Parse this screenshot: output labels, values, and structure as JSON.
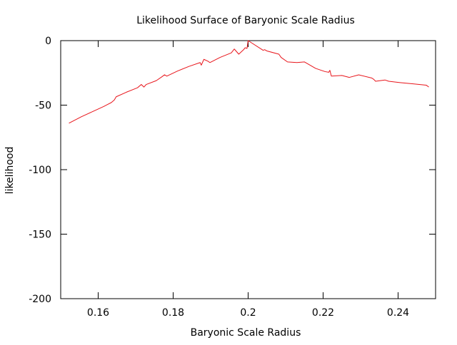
{
  "chart_data": {
    "type": "line",
    "title": "Likelihood Surface of Baryonic Scale Radius",
    "xlabel": "Baryonic Scale Radius",
    "ylabel": "likelihood",
    "xlim": [
      0.15,
      0.25
    ],
    "ylim": [
      -200,
      0
    ],
    "grid": false,
    "x_ticks": [
      0.16,
      0.18,
      0.2,
      0.22,
      0.24
    ],
    "x_tick_labels": [
      "0.16",
      "0.18",
      "0.2",
      "0.22",
      "0.24"
    ],
    "y_ticks": [
      0,
      -50,
      -100,
      -150,
      -200
    ],
    "y_tick_labels": [
      "0",
      "-50",
      "-100",
      "-150",
      "-200"
    ],
    "series": [
      {
        "color": "#e8151b",
        "x": [
          0.1522,
          0.1555,
          0.1585,
          0.1615,
          0.1625,
          0.1635,
          0.1643,
          0.1648,
          0.1675,
          0.1705,
          0.1715,
          0.1722,
          0.1728,
          0.1755,
          0.177,
          0.1777,
          0.1783,
          0.1812,
          0.1842,
          0.1872,
          0.1875,
          0.1882,
          0.1893,
          0.1898,
          0.1925,
          0.1955,
          0.1963,
          0.1975,
          0.1988,
          0.1992,
          0.1997,
          0.2,
          0.204,
          0.2044,
          0.205,
          0.2082,
          0.2088,
          0.2105,
          0.213,
          0.215,
          0.218,
          0.2205,
          0.2215,
          0.2218,
          0.2222,
          0.225,
          0.227,
          0.2295,
          0.233,
          0.2335,
          0.234,
          0.2365,
          0.2375,
          0.2405,
          0.244,
          0.2475,
          0.2482
        ],
        "y": [
          -64,
          -59,
          -55,
          -51,
          -49.5,
          -48,
          -46,
          -43.5,
          -40,
          -36.5,
          -34,
          -36,
          -34,
          -31,
          -28,
          -26.5,
          -27.5,
          -23.5,
          -20,
          -17,
          -19,
          -14.5,
          -16,
          -17,
          -13,
          -9.5,
          -6.5,
          -10.5,
          -7,
          -5.5,
          -6,
          0,
          -7.5,
          -7,
          -8,
          -10.5,
          -13,
          -16.5,
          -17,
          -16.5,
          -21.5,
          -24,
          -24.5,
          -23,
          -27.5,
          -27,
          -28.5,
          -26.5,
          -29,
          -30,
          -31.5,
          -30.5,
          -31.5,
          -32.5,
          -33.5,
          -34.5,
          -36
        ]
      }
    ]
  }
}
